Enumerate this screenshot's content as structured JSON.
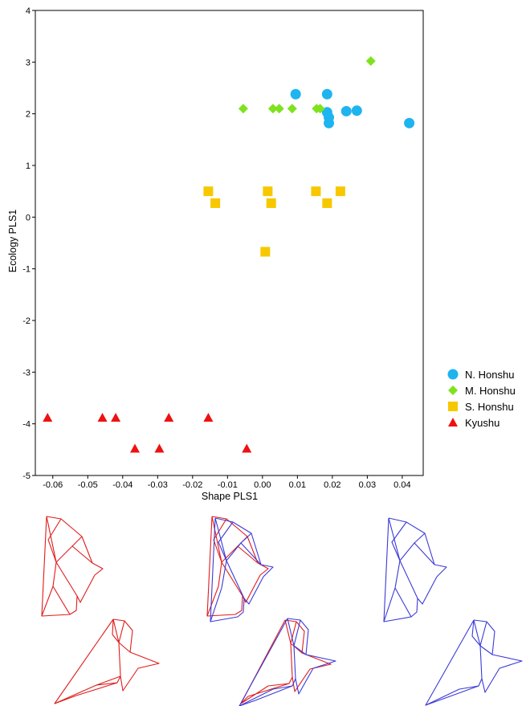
{
  "chart_data": {
    "type": "scatter",
    "xlabel": "Shape PLS1",
    "ylabel": "Ecology PLS1",
    "xlim": [
      -0.065,
      0.046
    ],
    "ylim": [
      -5,
      4
    ],
    "xticks": [
      "-0.06",
      "-0.05",
      "-0.04",
      "-0.03",
      "-0.02",
      "-0.01",
      "0.00",
      "0.01",
      "0.02",
      "0.03",
      "0.04"
    ],
    "xtick_values": [
      -0.06,
      -0.05,
      -0.04,
      -0.03,
      -0.02,
      -0.01,
      0.0,
      0.01,
      0.02,
      0.03,
      0.04
    ],
    "yticks": [
      "-5",
      "-4",
      "-3",
      "-2",
      "-1",
      "0",
      "1",
      "2",
      "3",
      "4"
    ],
    "ytick_values": [
      -5,
      -4,
      -3,
      -2,
      -1,
      0,
      1,
      2,
      3,
      4
    ],
    "grid": false,
    "legend_position": "right",
    "series": [
      {
        "name": "N. Honshu",
        "marker": "circle",
        "color": "#1EB4F0",
        "points": [
          [
            0.0095,
            2.38
          ],
          [
            0.0185,
            2.38
          ],
          [
            0.0185,
            2.03
          ],
          [
            0.019,
            1.93
          ],
          [
            0.019,
            1.82
          ],
          [
            0.024,
            2.05
          ],
          [
            0.027,
            2.06
          ],
          [
            0.042,
            1.82
          ]
        ]
      },
      {
        "name": "M. Honshu",
        "marker": "diamond",
        "color": "#7FE21E",
        "points": [
          [
            -0.0055,
            2.1
          ],
          [
            0.003,
            2.1
          ],
          [
            0.0048,
            2.1
          ],
          [
            0.0085,
            2.1
          ],
          [
            0.0155,
            2.1
          ],
          [
            0.0165,
            2.1
          ],
          [
            0.031,
            3.02
          ]
        ]
      },
      {
        "name": "S. Honshu",
        "marker": "square",
        "color": "#F7C800",
        "points": [
          [
            -0.0155,
            0.5
          ],
          [
            -0.0135,
            0.27
          ],
          [
            0.0015,
            0.5
          ],
          [
            0.0025,
            0.27
          ],
          [
            0.0008,
            -0.67
          ],
          [
            0.0153,
            0.5
          ],
          [
            0.0185,
            0.27
          ],
          [
            0.0223,
            0.5
          ]
        ]
      },
      {
        "name": "Kyushu",
        "marker": "triangle",
        "color": "#EE1111",
        "points": [
          [
            -0.0615,
            -3.88
          ],
          [
            -0.0458,
            -3.88
          ],
          [
            -0.042,
            -3.88
          ],
          [
            -0.0365,
            -4.48
          ],
          [
            -0.0295,
            -4.48
          ],
          [
            -0.0268,
            -3.88
          ],
          [
            -0.0155,
            -3.88
          ],
          [
            -0.0045,
            -4.48
          ]
        ]
      }
    ]
  },
  "colors": {
    "red_outline": "#E01B1B",
    "blue_outline": "#3A3AD8"
  }
}
